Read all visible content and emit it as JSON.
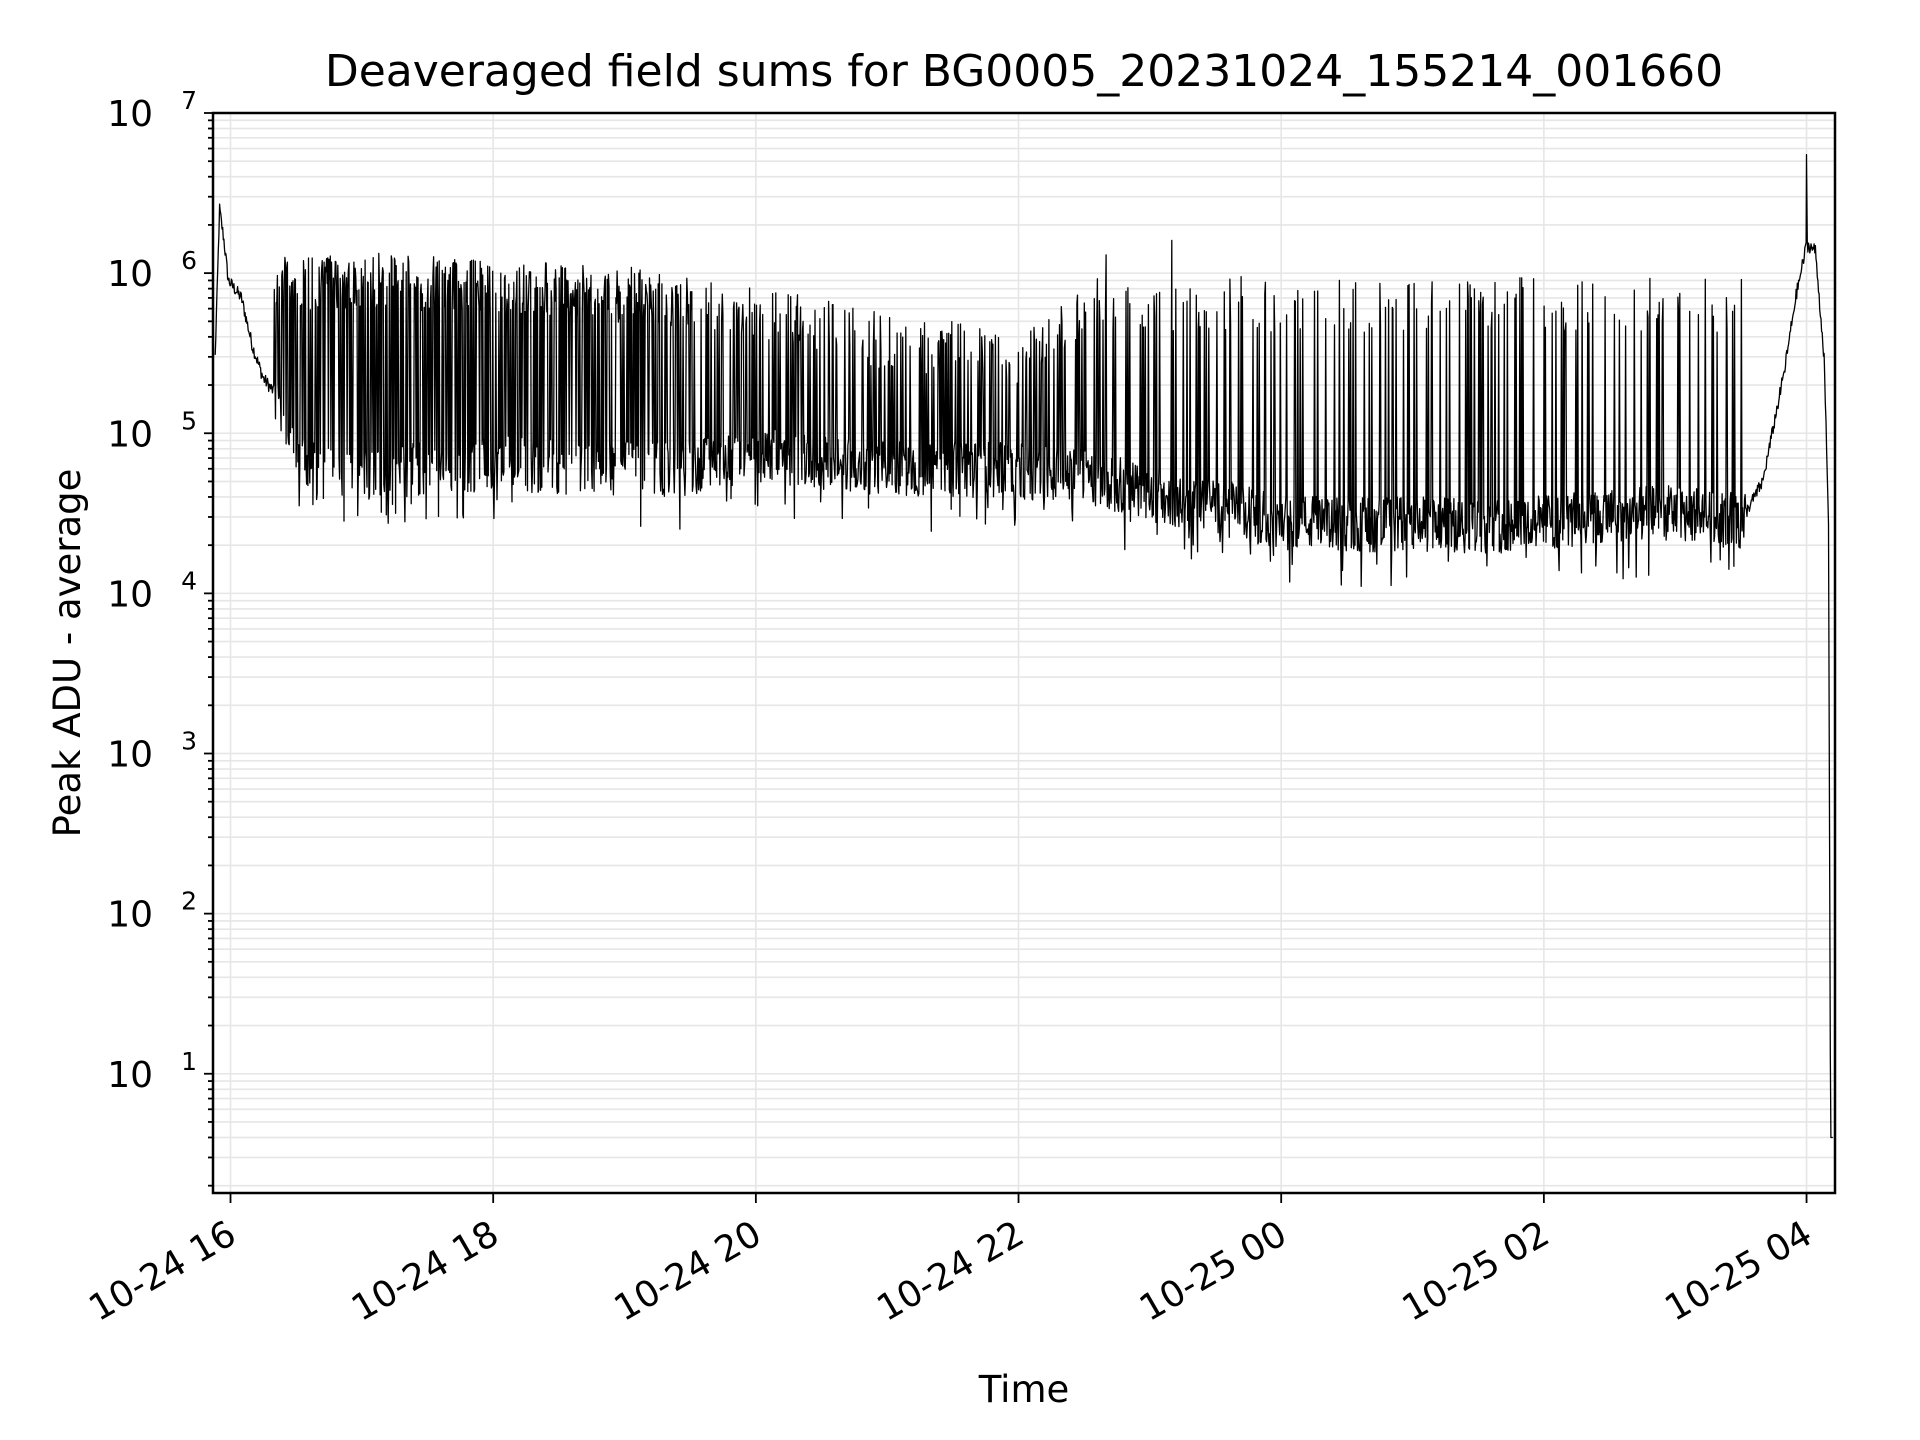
{
  "chart_data": {
    "type": "line",
    "title": "Deaveraged field sums for BG0005_20231024_155214_001660",
    "xlabel": "Time",
    "ylabel": "Peak ADU - average",
    "yscale": "log",
    "ylim": [
      1.8,
      10000000
    ],
    "xlim": [
      "2023-10-24 15:52",
      "2023-10-25 04:13"
    ],
    "grid": true,
    "line_color": "#000000",
    "grid_color": "#e6e6e6",
    "x_tick_labels": [
      "10-24 16",
      "10-24 18",
      "10-24 20",
      "10-24 22",
      "10-25 00",
      "10-25 02",
      "10-25 04"
    ],
    "x_ticks": [
      "2023-10-24 16:00",
      "2023-10-24 18:00",
      "2023-10-24 20:00",
      "2023-10-24 22:00",
      "2023-10-25 00:00",
      "2023-10-25 02:00",
      "2023-10-25 04:00"
    ],
    "y_ticks": [
      {
        "value": 10,
        "base": "10",
        "exp": "1"
      },
      {
        "value": 100,
        "base": "10",
        "exp": "2"
      },
      {
        "value": 1000,
        "base": "10",
        "exp": "3"
      },
      {
        "value": 10000,
        "base": "10",
        "exp": "4"
      },
      {
        "value": 100000,
        "base": "10",
        "exp": "5"
      },
      {
        "value": 1000000,
        "base": "10",
        "exp": "6"
      },
      {
        "value": 10000000,
        "base": "10",
        "exp": "7"
      }
    ],
    "series": [
      {
        "x": [
          "2023-10-24 15:53",
          "2023-10-24 15:55",
          "2023-10-24 15:57",
          "2023-10-24 15:59",
          "2023-10-24 16:05",
          "2023-10-24 16:10",
          "2023-10-24 16:15",
          "2023-10-24 16:20",
          "2023-10-24 16:25",
          "2023-10-24 16:30",
          "2023-10-24 16:35",
          "2023-10-24 16:40",
          "2023-10-24 16:50",
          "2023-10-24 17:00",
          "2023-10-24 17:30",
          "2023-10-24 18:00",
          "2023-10-24 18:30",
          "2023-10-24 19:00",
          "2023-10-24 19:30",
          "2023-10-24 20:00",
          "2023-10-24 20:30",
          "2023-10-24 21:00",
          "2023-10-24 21:30",
          "2023-10-24 22:00",
          "2023-10-24 22:30",
          "2023-10-24 23:00",
          "2023-10-24 23:30",
          "2023-10-25 00:00",
          "2023-10-25 00:30",
          "2023-10-25 01:00",
          "2023-10-25 01:30",
          "2023-10-25 02:00",
          "2023-10-25 02:30",
          "2023-10-25 03:00",
          "2023-10-25 03:30",
          "2023-10-25 03:40",
          "2023-10-25 03:50",
          "2023-10-25 03:55",
          "2023-10-25 04:00",
          "2023-10-25 04:04",
          "2023-10-25 04:08",
          "2023-10-25 04:10",
          "2023-10-25 04:11",
          "2023-10-25 04:12"
        ],
        "y": [
          300000,
          2500000,
          1600000,
          900000,
          700000,
          350000,
          220000,
          180000,
          120000,
          80000,
          65000,
          55000,
          60000,
          55000,
          60000,
          65000,
          62000,
          60000,
          60000,
          75000,
          65000,
          60000,
          60000,
          58000,
          55000,
          42000,
          35000,
          28000,
          27000,
          27000,
          26000,
          28000,
          30000,
          32000,
          28000,
          50000,
          250000,
          700000,
          1500000,
          1400000,
          300000,
          30000,
          4,
          4
        ]
      }
    ],
    "spike_envelope": {
      "x": [
        "2023-10-24 16:20",
        "2023-10-24 17:00",
        "2023-10-24 18:00",
        "2023-10-24 19:00",
        "2023-10-24 20:00",
        "2023-10-24 21:00",
        "2023-10-24 22:00",
        "2023-10-24 22:40",
        "2023-10-24 23:30",
        "2023-10-25 00:30",
        "2023-10-25 01:30",
        "2023-10-25 02:30",
        "2023-10-25 03:30"
      ],
      "y": [
        1250000,
        1350000,
        1200000,
        1100000,
        900000,
        550000,
        450000,
        1000000,
        950000,
        950000,
        950000,
        950000,
        950000
      ]
    },
    "notable_peaks": [
      {
        "x": "2023-10-24 15:55",
        "y": 2700000
      },
      {
        "x": "2023-10-24 22:40",
        "y": 1300000
      },
      {
        "x": "2023-10-24 23:10",
        "y": 1600000
      },
      {
        "x": "2023-10-25 04:00",
        "y": 5500000
      }
    ]
  }
}
